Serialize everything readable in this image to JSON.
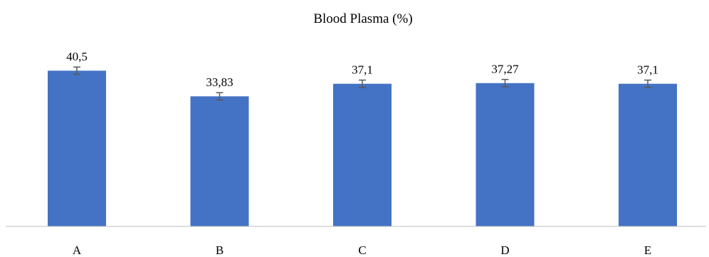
{
  "chart_data": {
    "type": "bar",
    "title": "Blood Plasma (%)",
    "xlabel": "",
    "ylabel": "",
    "categories": [
      "A",
      "B",
      "C",
      "D",
      "E"
    ],
    "values": [
      40.5,
      33.83,
      37.1,
      37.27,
      37.1
    ],
    "value_labels": [
      "40,5",
      "33,83",
      "37,1",
      "37,27",
      "37,1"
    ],
    "error": [
      0.95,
      0.95,
      0.95,
      0.95,
      0.95
    ],
    "ylim": [
      0,
      50
    ],
    "grid": false,
    "legend": "none",
    "bar_color": "#4472C4",
    "error_bar_color": "#595959",
    "axis_color": "#BFBFBF"
  }
}
